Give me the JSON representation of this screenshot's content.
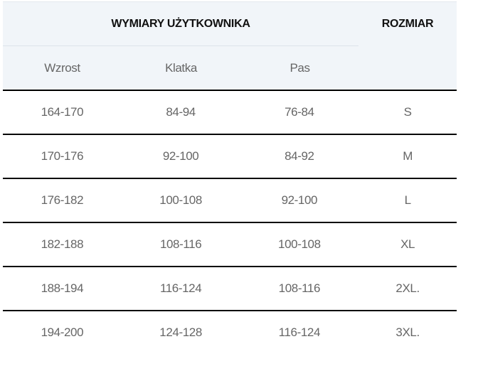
{
  "header": {
    "group_title": "WYMIARY UŻYTKOWNIKA",
    "size_title": "ROZMIAR",
    "columns": [
      "Wzrost",
      "Klatka",
      "Pas"
    ]
  },
  "rows": [
    [
      "164-170",
      "84-94",
      "76-84",
      "S"
    ],
    [
      "170-176",
      "92-100",
      "84-92",
      "M"
    ],
    [
      "176-182",
      "100-108",
      "92-100",
      "L"
    ],
    [
      "182-188",
      "108-116",
      "100-108",
      "XL"
    ],
    [
      "188-194",
      "116-124",
      "108-116",
      "2XL."
    ],
    [
      "194-200",
      "124-128",
      "116-124",
      "3XL."
    ]
  ]
}
